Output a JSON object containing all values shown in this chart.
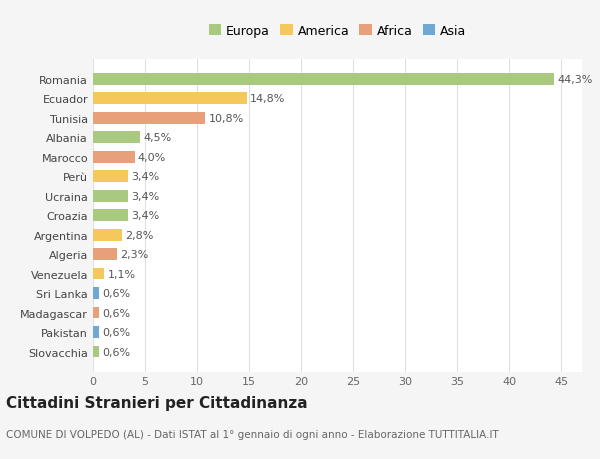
{
  "title": "Cittadini Stranieri per Cittadinanza",
  "subtitle": "COMUNE DI VOLPEDO (AL) - Dati ISTAT al 1° gennaio di ogni anno - Elaborazione TUTTITALIA.IT",
  "legend_labels": [
    "Europa",
    "America",
    "Africa",
    "Asia"
  ],
  "legend_colors": [
    "#a8c97f",
    "#f5c85c",
    "#e8a07a",
    "#6fa8d4"
  ],
  "categories": [
    "Romania",
    "Ecuador",
    "Tunisia",
    "Albania",
    "Marocco",
    "Perù",
    "Ucraina",
    "Croazia",
    "Argentina",
    "Algeria",
    "Venezuela",
    "Sri Lanka",
    "Madagascar",
    "Pakistan",
    "Slovacchia"
  ],
  "values": [
    44.3,
    14.8,
    10.8,
    4.5,
    4.0,
    3.4,
    3.4,
    3.4,
    2.8,
    2.3,
    1.1,
    0.6,
    0.6,
    0.6,
    0.6
  ],
  "labels": [
    "44,3%",
    "14,8%",
    "10,8%",
    "4,5%",
    "4,0%",
    "3,4%",
    "3,4%",
    "3,4%",
    "2,8%",
    "2,3%",
    "1,1%",
    "0,6%",
    "0,6%",
    "0,6%",
    "0,6%"
  ],
  "bar_colors": [
    "#a8c97f",
    "#f5c85c",
    "#e8a07a",
    "#a8c97f",
    "#e8a07a",
    "#f5c85c",
    "#a8c97f",
    "#a8c97f",
    "#f5c85c",
    "#e8a07a",
    "#f5c85c",
    "#6fa8d4",
    "#e8a07a",
    "#6fa8d4",
    "#a8c97f"
  ],
  "xlim": [
    0,
    47
  ],
  "xticks": [
    0,
    5,
    10,
    15,
    20,
    25,
    30,
    35,
    40,
    45
  ],
  "background_color": "#f5f5f5",
  "plot_bg_color": "#ffffff",
  "grid_color": "#e0e0e0",
  "bar_height": 0.6,
  "tick_fontsize": 8,
  "label_fontsize": 8,
  "legend_fontsize": 9,
  "title_fontsize": 11,
  "subtitle_fontsize": 7.5
}
